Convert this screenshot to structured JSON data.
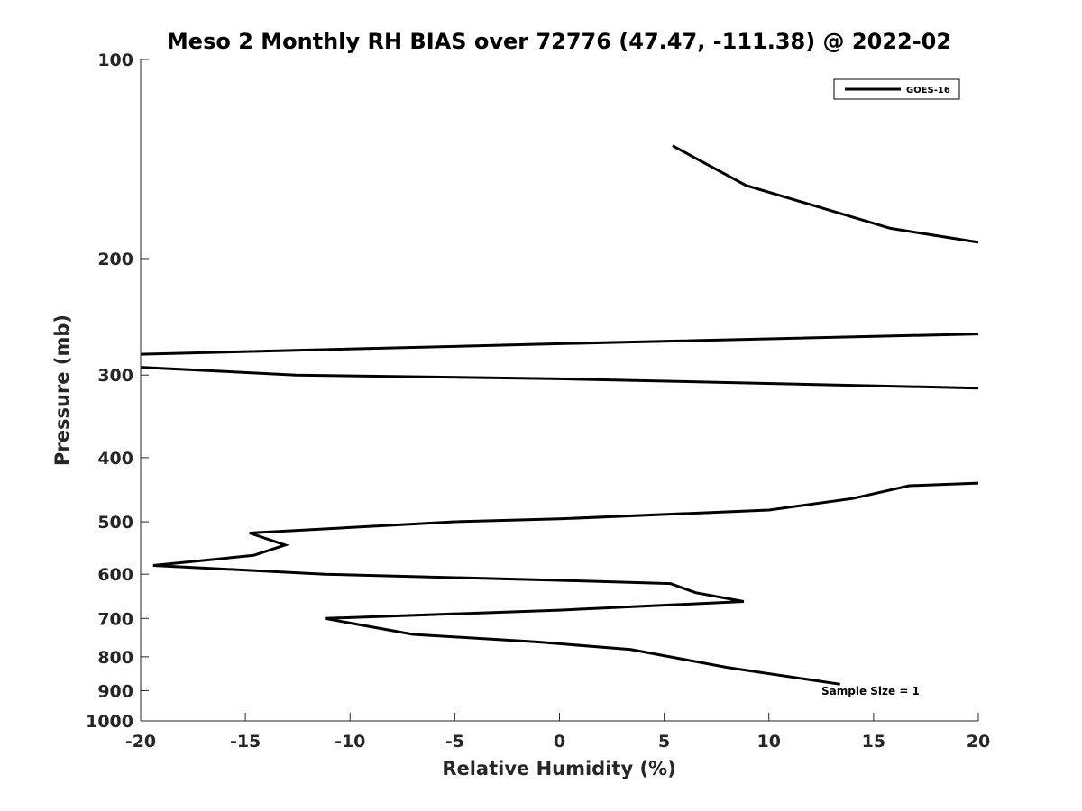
{
  "chart_data": {
    "type": "line",
    "title": "Meso 2 Monthly RH BIAS over 72776 (47.47, -111.38) @ 2022-02",
    "xlabel": "Relative Humidity (%)",
    "ylabel": "Pressure (mb)",
    "xlim": [
      -20,
      20
    ],
    "ylim": [
      1000,
      100
    ],
    "y_scale": "log",
    "x_ticks": [
      "-20",
      "-15",
      "-10",
      "-5",
      "0",
      "5",
      "10",
      "15",
      "20"
    ],
    "x_tick_values": [
      -20,
      -15,
      -10,
      -5,
      0,
      5,
      10,
      15,
      20
    ],
    "y_ticks": [
      "100",
      "200",
      "300",
      "400",
      "500",
      "600",
      "700",
      "800",
      "900",
      "1000"
    ],
    "y_tick_values": [
      100,
      200,
      300,
      400,
      500,
      600,
      700,
      800,
      900,
      1000
    ],
    "grid": false,
    "legend_position": "top-right",
    "series": [
      {
        "name": "GOES-16",
        "color": "#000000",
        "segments": [
          [
            {
              "x": 5.4,
              "y": 135
            },
            {
              "x": 8.9,
              "y": 155
            },
            {
              "x": 15.8,
              "y": 180
            },
            {
              "x": 20.0,
              "y": 189
            }
          ],
          [
            {
              "x": 20.0,
              "y": 260
            },
            {
              "x": 0.0,
              "y": 269
            },
            {
              "x": -20.0,
              "y": 279
            }
          ],
          [
            {
              "x": -20.0,
              "y": 292
            },
            {
              "x": -12.6,
              "y": 300
            },
            {
              "x": 0.0,
              "y": 304
            },
            {
              "x": 20.0,
              "y": 314
            }
          ],
          [
            {
              "x": 20.0,
              "y": 437
            },
            {
              "x": 16.7,
              "y": 441
            },
            {
              "x": 14.0,
              "y": 461
            },
            {
              "x": 10.0,
              "y": 480
            },
            {
              "x": 0.0,
              "y": 495
            },
            {
              "x": -5.0,
              "y": 500
            },
            {
              "x": -14.8,
              "y": 520
            },
            {
              "x": -13.1,
              "y": 542
            },
            {
              "x": -14.6,
              "y": 562
            },
            {
              "x": -19.4,
              "y": 582
            },
            {
              "x": -11.2,
              "y": 600
            },
            {
              "x": 0.0,
              "y": 613
            },
            {
              "x": 5.3,
              "y": 620
            },
            {
              "x": 6.5,
              "y": 640
            },
            {
              "x": 8.8,
              "y": 660
            },
            {
              "x": 0.0,
              "y": 680
            },
            {
              "x": -11.2,
              "y": 700
            },
            {
              "x": -7.0,
              "y": 740
            },
            {
              "x": -1.0,
              "y": 760
            },
            {
              "x": 3.4,
              "y": 780
            },
            {
              "x": 8.0,
              "y": 830
            },
            {
              "x": 13.4,
              "y": 880
            }
          ]
        ]
      }
    ],
    "annotations": [
      {
        "text": "Sample Size = 1",
        "x": 12.5,
        "y": 900
      }
    ]
  }
}
